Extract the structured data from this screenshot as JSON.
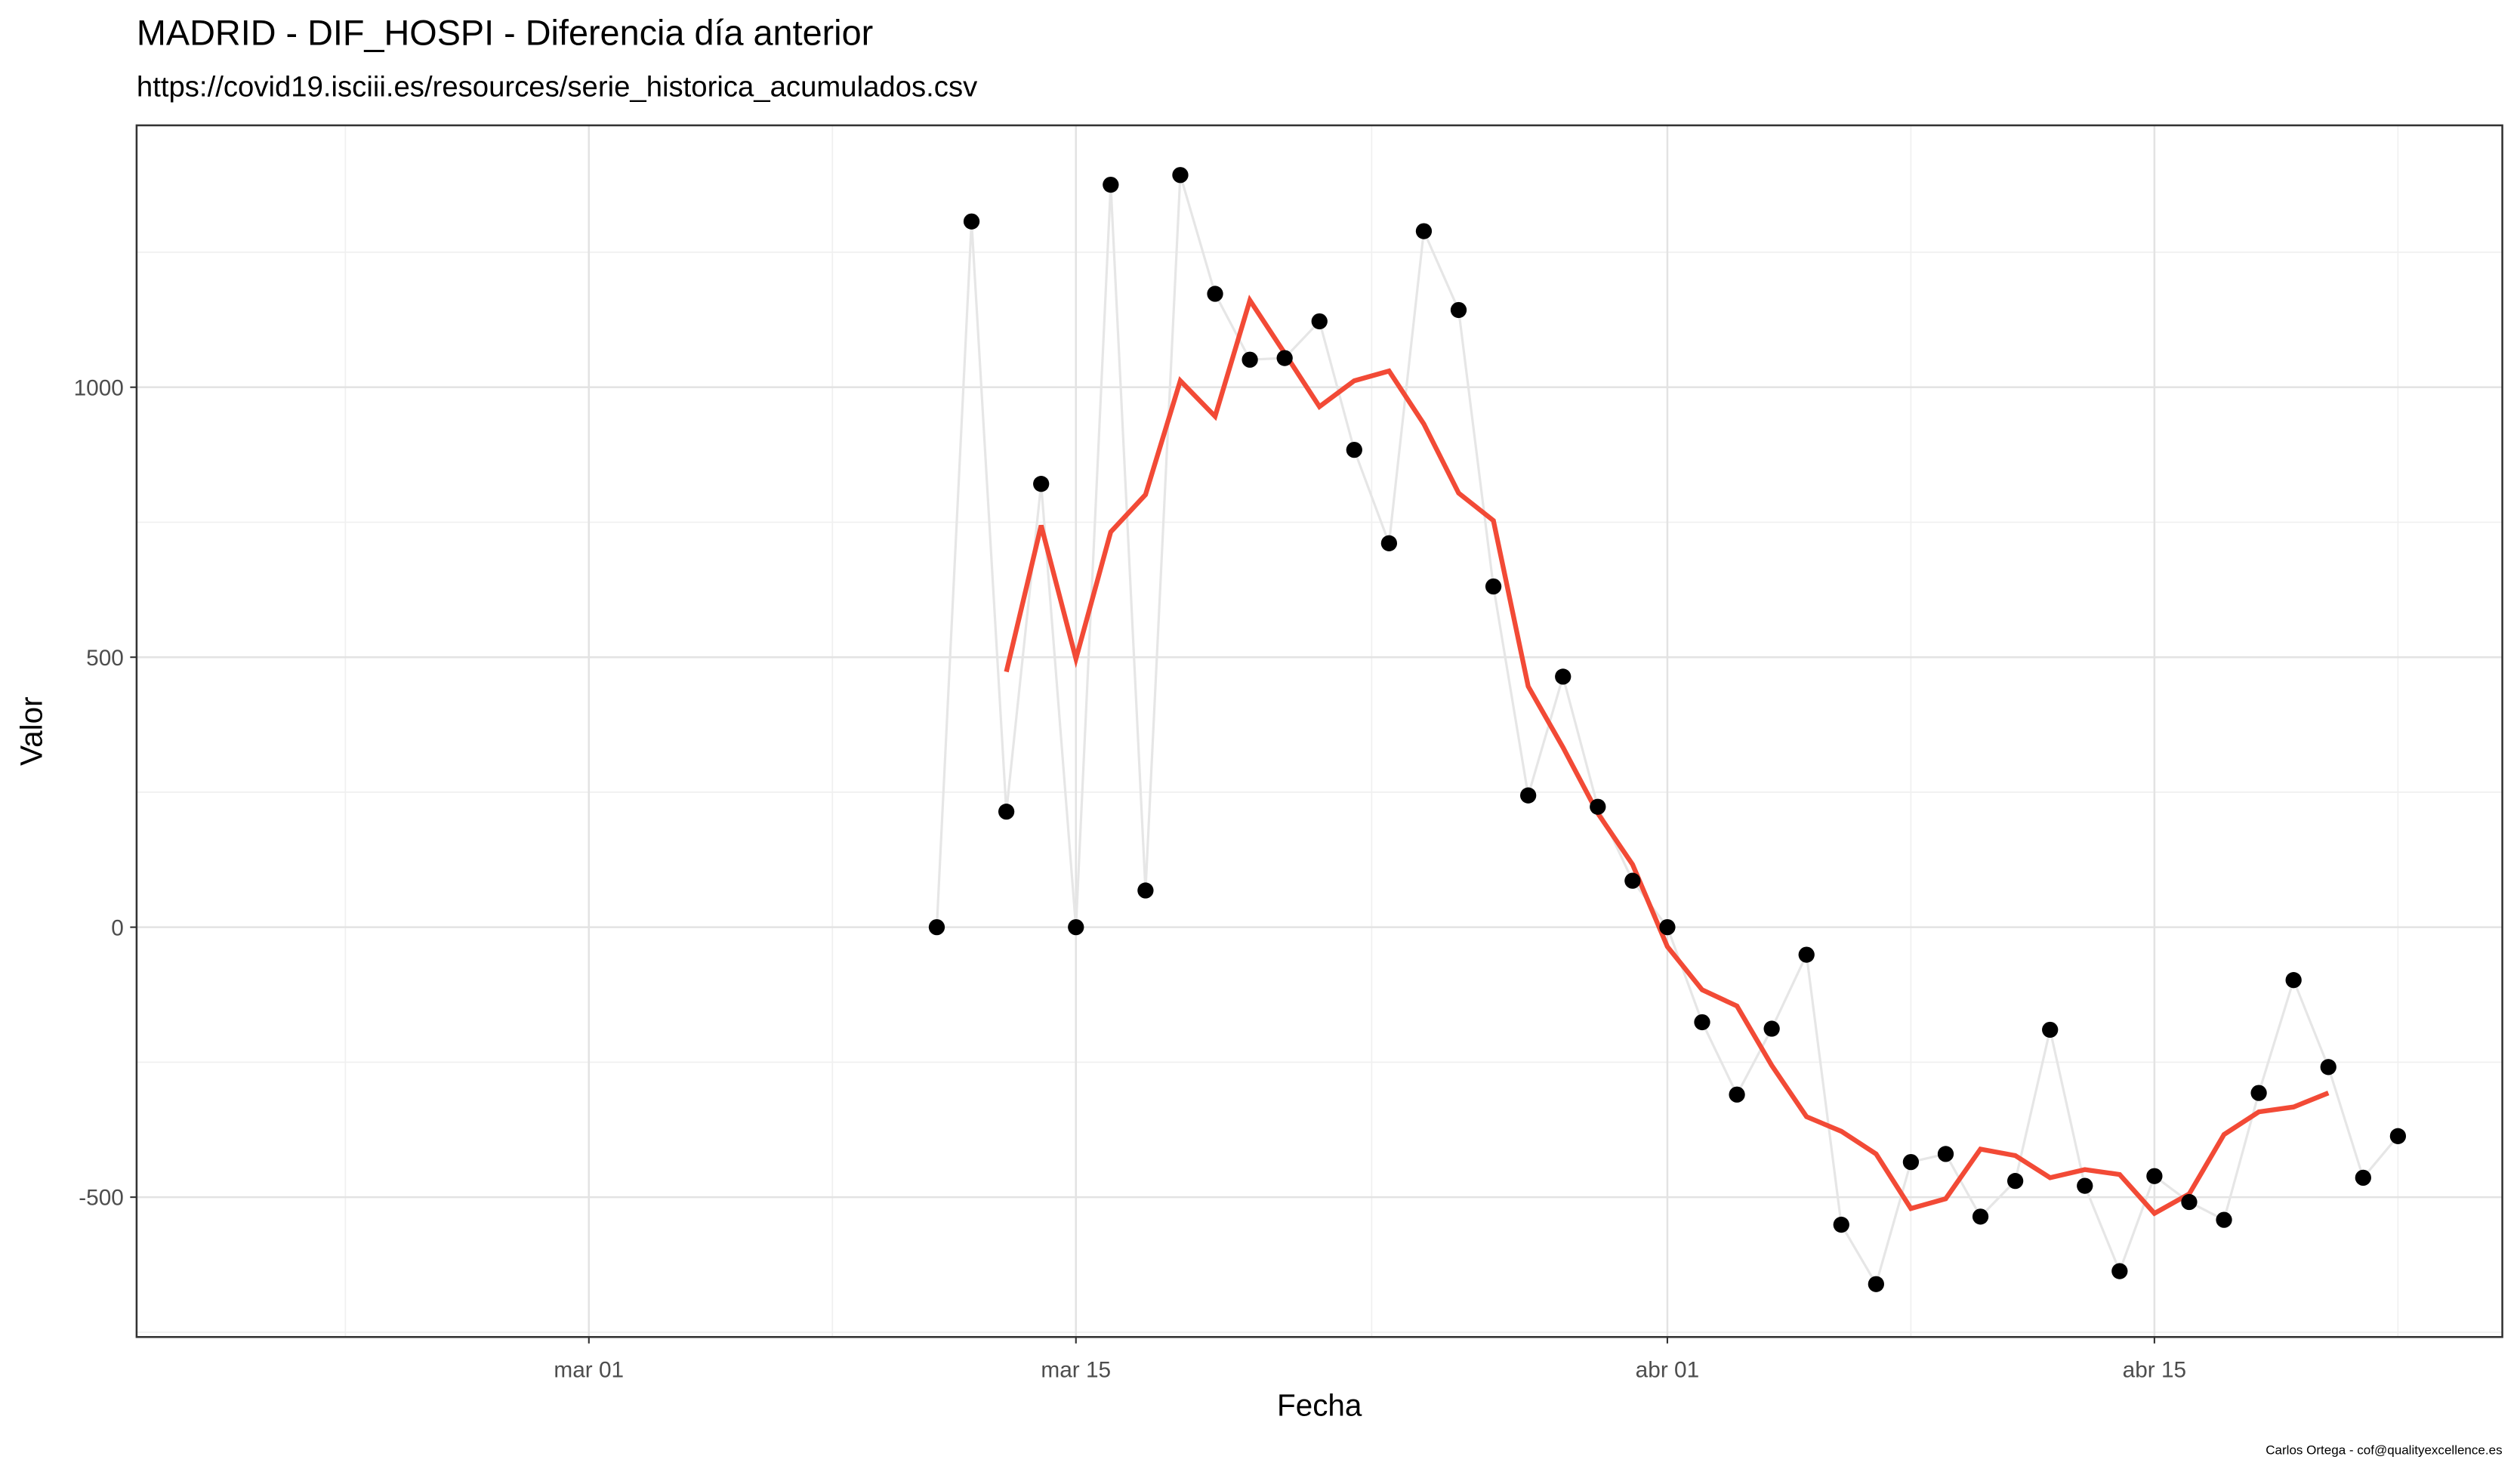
{
  "chart_data": {
    "type": "line",
    "title": "MADRID - DIF_HOSPI - Diferencia día anterior",
    "subtitle": "https://covid19.isciii.es/resources/serie_historica_acumulados.csv",
    "x_label": "Fecha",
    "y_label": "Valor",
    "caption": "Carlos Ortega - cof@qualityexcellence.es",
    "x": [
      "03-11",
      "03-12",
      "03-13",
      "03-14",
      "03-15",
      "03-16",
      "03-17",
      "03-18",
      "03-19",
      "03-20",
      "03-21",
      "03-22",
      "03-23",
      "03-24",
      "03-25",
      "03-26",
      "03-27",
      "03-28",
      "03-29",
      "03-30",
      "03-31",
      "04-01",
      "04-02",
      "04-03",
      "04-04",
      "04-05",
      "04-06",
      "04-07",
      "04-08",
      "04-09",
      "04-10",
      "04-11",
      "04-12",
      "04-13",
      "04-14",
      "04-15",
      "04-16",
      "04-17",
      "04-18",
      "04-19",
      "04-20",
      "04-21",
      "04-22"
    ],
    "series": [
      {
        "color": "#000000",
        "line_color": "#e6e6e6",
        "values": [
          0,
          1307,
          214,
          821,
          0,
          1375,
          68,
          1393,
          1173,
          1051,
          1054,
          1122,
          884,
          711,
          1289,
          1143,
          631,
          244,
          464,
          223,
          86,
          0,
          -176,
          -310,
          -188,
          -51,
          -551,
          -661,
          -435,
          -420,
          -536,
          -470,
          -190,
          -479,
          -637,
          -461,
          -509,
          -542,
          -307,
          -98,
          -259,
          -464,
          -387
        ]
      },
      {
        "color": "#f24a36",
        "values": [
          null,
          null,
          473,
          744,
          497,
          732,
          801,
          1012,
          946,
          1161,
          1063,
          964,
          1012,
          1030,
          932,
          804,
          753,
          446,
          333,
          211,
          116,
          -36,
          -116,
          -146,
          -256,
          -351,
          -378,
          -420,
          -521,
          -503,
          -411,
          -423,
          -464,
          -449,
          -458,
          -530,
          -494,
          -384,
          -342,
          -333,
          -307,
          null,
          null
        ]
      }
    ],
    "xlim": [
      "02-17",
      "04-25"
    ],
    "xticks": [
      {
        "value": "03-01",
        "label": "mar 01"
      },
      {
        "value": "03-15",
        "label": "mar 15"
      },
      {
        "value": "04-01",
        "label": "abr 01"
      },
      {
        "value": "04-15",
        "label": "abr 15"
      }
    ],
    "ylim": [
      -759,
      1485
    ],
    "yticks": [
      -500,
      0,
      500,
      1000
    ],
    "grid": true
  }
}
